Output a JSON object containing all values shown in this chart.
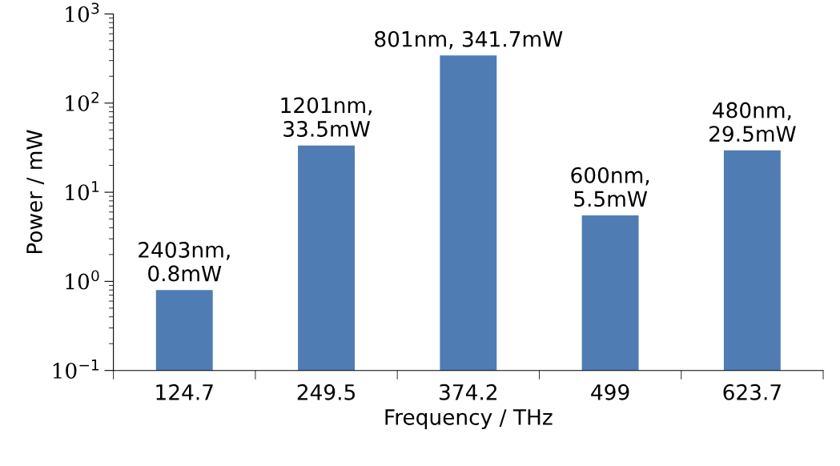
{
  "chart_data": {
    "type": "bar",
    "xlabel": "Frequency / THz",
    "ylabel": "Power / mW",
    "categories": [
      "124.7",
      "249.5",
      "374.2",
      "499",
      "623.7"
    ],
    "values": [
      0.8,
      33.5,
      341.7,
      5.5,
      29.5
    ],
    "value_labels": [
      "2403nm,\n0.8mW",
      "1201nm,\n33.5mW",
      "801nm, 341.7mW",
      "600nm,\n5.5mW",
      "480nm,\n29.5mW"
    ],
    "color": "#4f7db3",
    "log": true,
    "ylim": [
      0.1,
      1000
    ],
    "yticks": [
      {
        "value": 0.1,
        "label": "10$^{−1}$"
      },
      {
        "value": 1,
        "label": "10$^{0}$"
      },
      {
        "value": 10,
        "label": "10$^{1}$"
      },
      {
        "value": 100,
        "label": "10$^{2}$"
      },
      {
        "value": 1000,
        "label": "10$^{3}$"
      }
    ],
    "grid": false
  }
}
